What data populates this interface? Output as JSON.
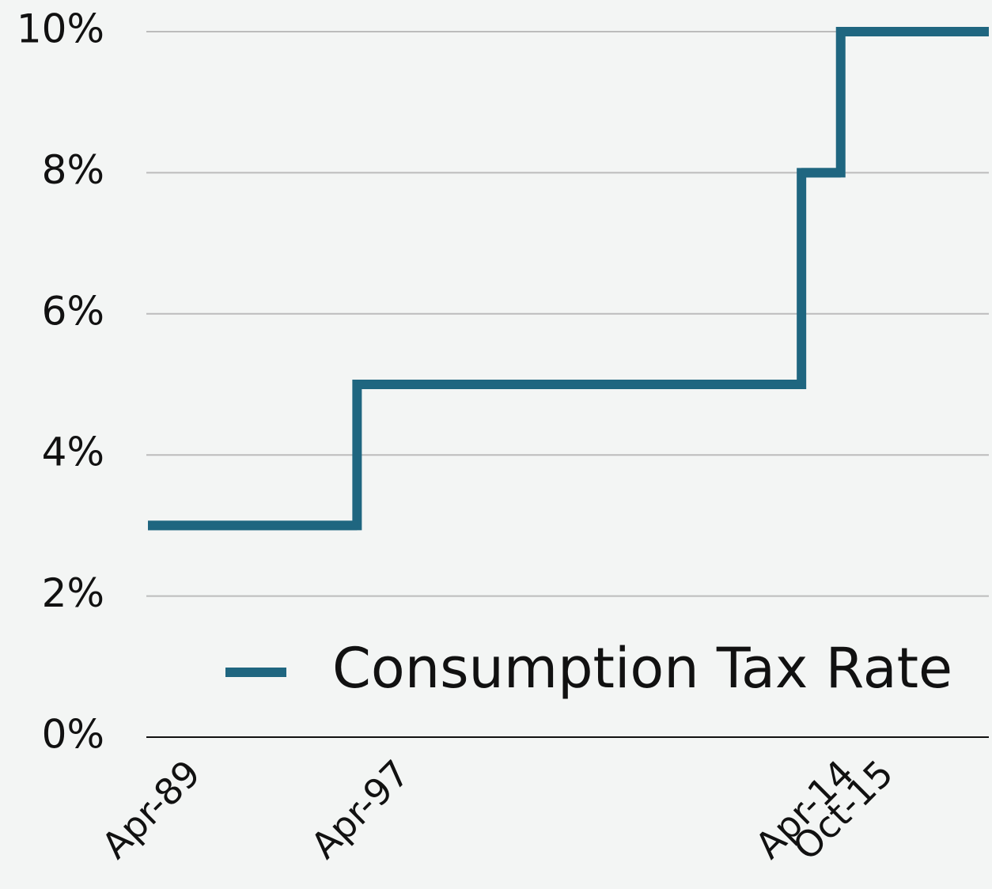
{
  "chart_data": {
    "type": "step",
    "x": [
      "Apr-89",
      "Apr-97",
      "Apr-14",
      "Oct-15"
    ],
    "xlim": [
      "Apr-89",
      "Jun-21"
    ],
    "series": [
      {
        "name": "Consumption Tax Rate",
        "color": "#1f6680",
        "values": [
          3,
          5,
          8,
          10
        ]
      }
    ],
    "ylim": [
      0,
      10
    ],
    "yticks": [
      {
        "value": 0,
        "label": "0%"
      },
      {
        "value": 2,
        "label": "2%"
      },
      {
        "value": 4,
        "label": "4%"
      },
      {
        "value": 6,
        "label": "6%"
      },
      {
        "value": 8,
        "label": "8%"
      },
      {
        "value": 10,
        "label": "10%"
      }
    ],
    "grid": true,
    "legend": "bottom-right"
  }
}
